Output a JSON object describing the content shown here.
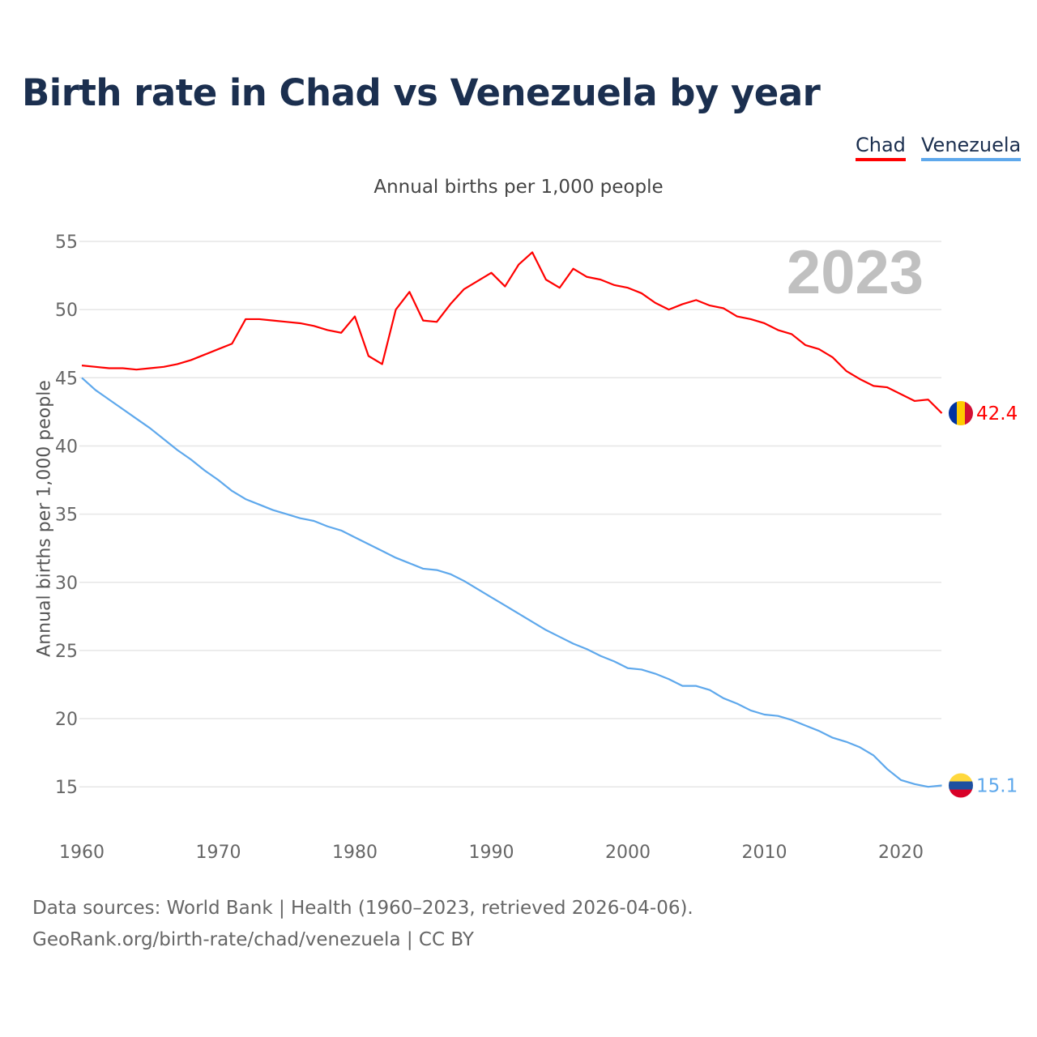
{
  "chart_data": {
    "type": "line",
    "title": "Birth rate in Chad vs Venezuela by year",
    "subtitle": "Annual births per 1,000 people",
    "ylabel": "Annual births per 1,000 people",
    "xlabel": "",
    "year_watermark": "2023",
    "xlim": [
      1960,
      2023
    ],
    "ylim": [
      12,
      56
    ],
    "xticks": [
      1960,
      1970,
      1980,
      1990,
      2000,
      2010,
      2020
    ],
    "yticks": [
      15,
      20,
      25,
      30,
      35,
      40,
      45,
      50,
      55
    ],
    "grid": true,
    "legend_position": "top-right",
    "x": [
      1960,
      1961,
      1962,
      1963,
      1964,
      1965,
      1966,
      1967,
      1968,
      1969,
      1970,
      1971,
      1972,
      1973,
      1974,
      1975,
      1976,
      1977,
      1978,
      1979,
      1980,
      1981,
      1982,
      1983,
      1984,
      1985,
      1986,
      1987,
      1988,
      1989,
      1990,
      1991,
      1992,
      1993,
      1994,
      1995,
      1996,
      1997,
      1998,
      1999,
      2000,
      2001,
      2002,
      2003,
      2004,
      2005,
      2006,
      2007,
      2008,
      2009,
      2010,
      2011,
      2012,
      2013,
      2014,
      2015,
      2016,
      2017,
      2018,
      2019,
      2020,
      2021,
      2022,
      2023
    ],
    "series": [
      {
        "name": "Chad",
        "color": "#ff0000",
        "end_label": "42.4",
        "values": [
          45.9,
          45.8,
          45.7,
          45.7,
          45.6,
          45.7,
          45.8,
          46.0,
          46.3,
          46.7,
          47.1,
          47.5,
          49.3,
          49.3,
          49.2,
          49.1,
          49.0,
          48.8,
          48.5,
          48.3,
          49.5,
          46.6,
          46.0,
          50.0,
          51.3,
          49.2,
          49.1,
          50.4,
          51.5,
          52.1,
          52.7,
          51.7,
          53.3,
          54.2,
          52.2,
          51.6,
          53.0,
          52.4,
          52.2,
          51.8,
          51.6,
          51.2,
          50.5,
          50.0,
          50.4,
          50.7,
          50.3,
          50.1,
          49.5,
          49.3,
          49.0,
          48.5,
          48.2,
          47.4,
          47.1,
          46.5,
          45.5,
          44.9,
          44.4,
          44.3,
          43.8,
          43.3,
          43.4,
          42.4
        ]
      },
      {
        "name": "Venezuela",
        "color": "#5ea8ec",
        "end_label": "15.1",
        "values": [
          45.0,
          44.1,
          43.4,
          42.7,
          42.0,
          41.3,
          40.5,
          39.7,
          39.0,
          38.2,
          37.5,
          36.7,
          36.1,
          35.7,
          35.3,
          35.0,
          34.7,
          34.5,
          34.1,
          33.8,
          33.3,
          32.8,
          32.3,
          31.8,
          31.4,
          31.0,
          30.9,
          30.6,
          30.1,
          29.5,
          28.9,
          28.3,
          27.7,
          27.1,
          26.5,
          26.0,
          25.5,
          25.1,
          24.6,
          24.2,
          23.7,
          23.6,
          23.3,
          22.9,
          22.4,
          22.4,
          22.1,
          21.5,
          21.1,
          20.6,
          20.3,
          20.2,
          19.9,
          19.5,
          19.1,
          18.6,
          18.3,
          17.9,
          17.3,
          16.3,
          15.5,
          15.2,
          15.0,
          15.1
        ]
      }
    ]
  },
  "legend": {
    "chad": "Chad",
    "venezuela": "Venezuela"
  },
  "footer": {
    "line1": "Data sources: World Bank | Health (1960–2023, retrieved 2026-04-06).",
    "line2": "GeoRank.org/birth-rate/chad/venezuela | CC BY"
  }
}
